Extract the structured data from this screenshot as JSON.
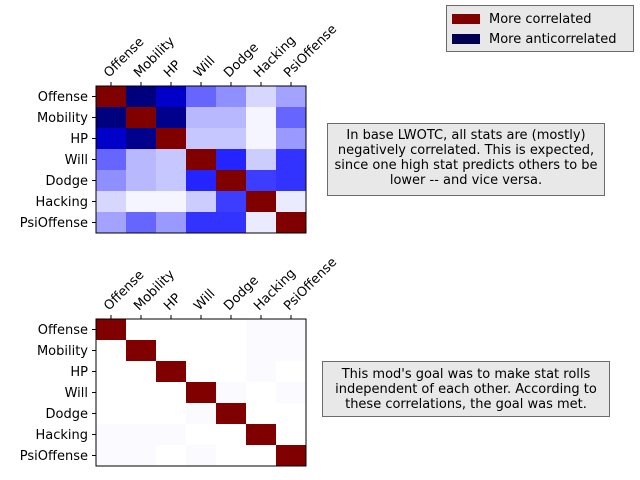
{
  "legend": {
    "items": [
      {
        "label": "More correlated",
        "color": "#800000"
      },
      {
        "label": "More anticorrelated",
        "color": "#000050"
      }
    ]
  },
  "notes": {
    "top": "In base LWOTC, all stats are (mostly) negatively correlated. This is expected, since one high stat predicts others to be lower -- and vice versa.",
    "bottom": "This mod's goal was to make stat rolls independent of each other. According to these correlations, the goal was met."
  },
  "chart_data": [
    {
      "type": "heatmap",
      "title": "",
      "colormap": "seismic",
      "vlim": [
        -1,
        1
      ],
      "categories": [
        "Offense",
        "Mobility",
        "HP",
        "Will",
        "Dodge",
        "Hacking",
        "PsiOffense"
      ],
      "values": [
        [
          1.0,
          -0.86,
          -0.65,
          -0.3,
          -0.22,
          -0.08,
          -0.18
        ],
        [
          -0.86,
          1.0,
          -0.82,
          -0.14,
          -0.14,
          -0.02,
          -0.3
        ],
        [
          -0.65,
          -0.82,
          1.0,
          -0.11,
          -0.11,
          -0.02,
          -0.2
        ],
        [
          -0.3,
          -0.14,
          -0.11,
          1.0,
          -0.43,
          -0.1,
          -0.4
        ],
        [
          -0.22,
          -0.14,
          -0.11,
          -0.43,
          1.0,
          -0.38,
          -0.4
        ],
        [
          -0.08,
          -0.02,
          -0.02,
          -0.1,
          -0.38,
          1.0,
          -0.04
        ],
        [
          -0.18,
          -0.3,
          -0.2,
          -0.4,
          -0.4,
          -0.04,
          1.0
        ]
      ]
    },
    {
      "type": "heatmap",
      "title": "",
      "colormap": "seismic",
      "vlim": [
        -1,
        1
      ],
      "categories": [
        "Offense",
        "Mobility",
        "HP",
        "Will",
        "Dodge",
        "Hacking",
        "PsiOffense"
      ],
      "values": [
        [
          1.0,
          0.0,
          0.0,
          0.0,
          0.0,
          -0.01,
          -0.01
        ],
        [
          0.0,
          1.0,
          0.0,
          0.0,
          0.0,
          -0.01,
          -0.01
        ],
        [
          0.0,
          0.0,
          1.0,
          0.0,
          0.0,
          -0.01,
          0.0
        ],
        [
          0.0,
          0.0,
          0.0,
          1.0,
          -0.01,
          0.0,
          -0.01
        ],
        [
          0.0,
          0.0,
          0.0,
          -0.01,
          1.0,
          0.0,
          0.0
        ],
        [
          -0.01,
          -0.01,
          -0.01,
          0.0,
          0.0,
          1.0,
          0.0
        ],
        [
          -0.01,
          -0.01,
          0.0,
          -0.01,
          0.0,
          0.0,
          1.0
        ]
      ]
    }
  ]
}
